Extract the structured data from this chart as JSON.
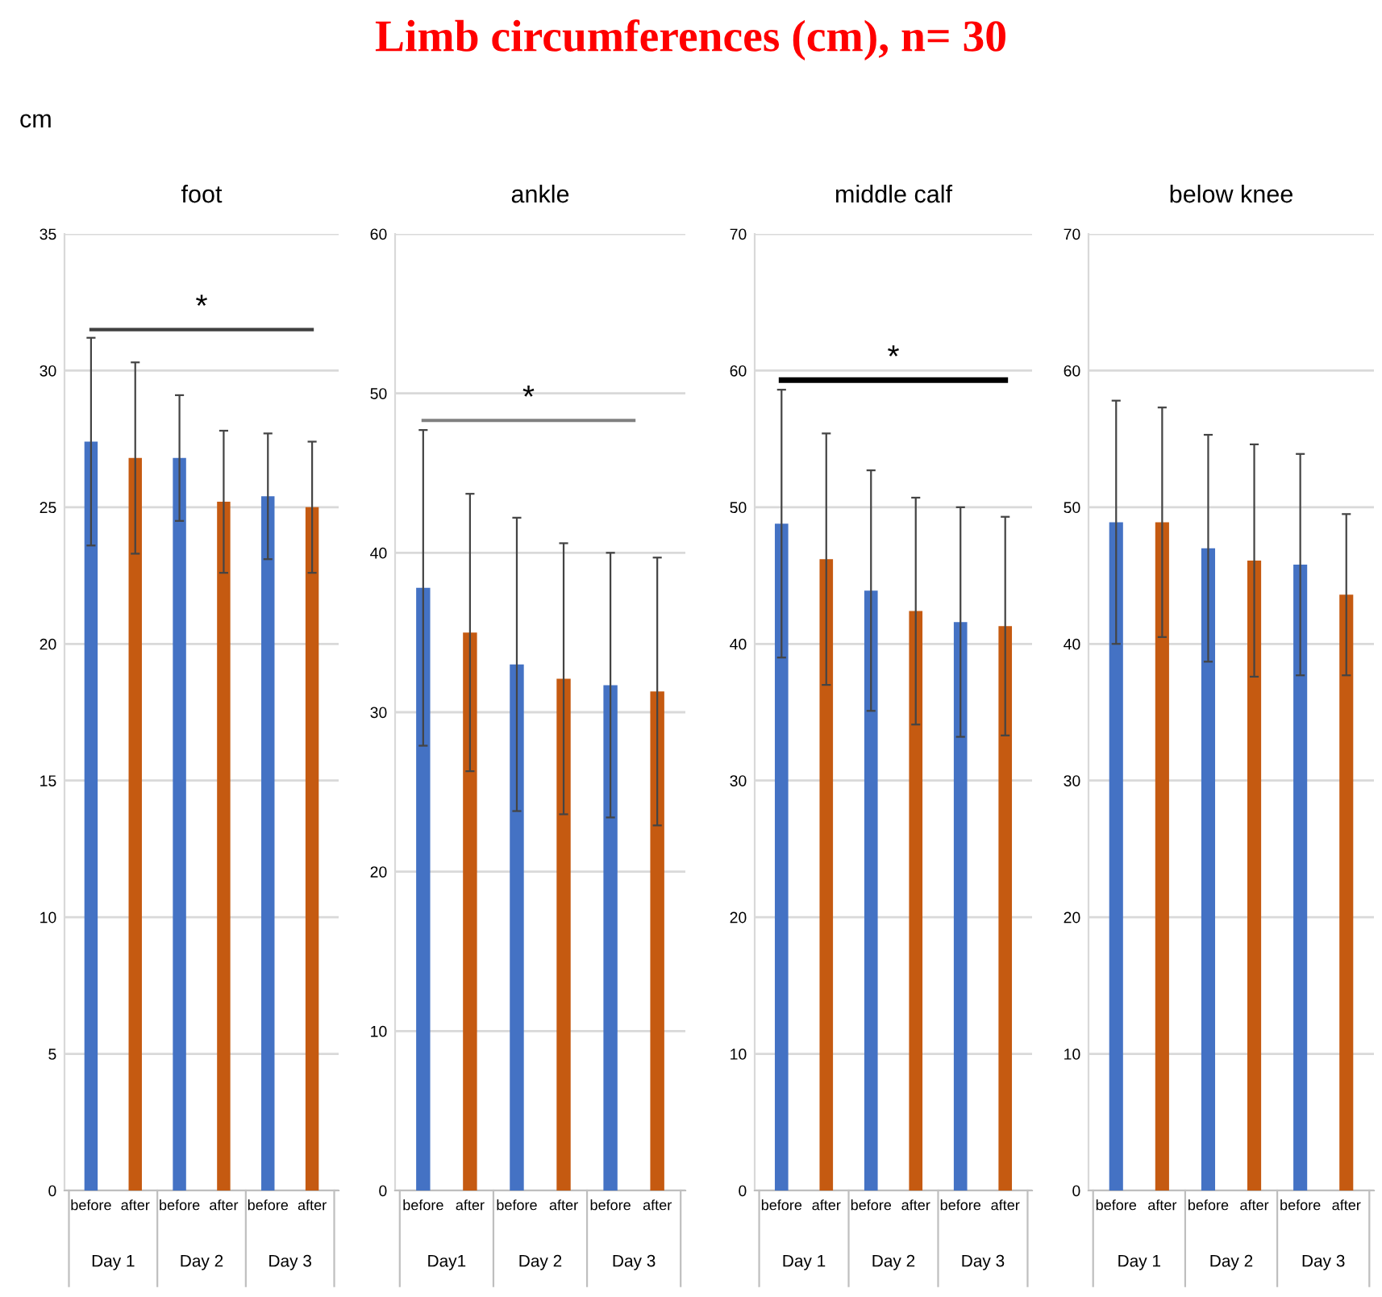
{
  "chart_data": [
    {
      "type": "bar",
      "subtitle": "foot",
      "ylabel": "cm",
      "categories": [
        "before",
        "after",
        "before",
        "after",
        "before",
        "after"
      ],
      "values": [
        27.4,
        26.8,
        26.8,
        25.2,
        25.4,
        25.0
      ],
      "errors": [
        3.8,
        3.5,
        2.3,
        2.6,
        2.3,
        2.4
      ],
      "colors": [
        "#4472c4",
        "#c55a11",
        "#4472c4",
        "#c55a11",
        "#4472c4",
        "#c55a11"
      ],
      "ylim": [
        0,
        35
      ],
      "yticks": [
        0,
        5,
        10,
        15,
        20,
        25,
        30,
        35
      ],
      "grid": "y",
      "ref_lines": [
        {
          "axis": "y",
          "value": 31.5,
          "label": "*",
          "color": "#404040"
        }
      ],
      "annotations": [
        "Limb circumferences (cm), n= 30",
        "Day 1",
        "Day 2",
        "Day 3"
      ]
    },
    {
      "type": "bar",
      "subtitle": "ankle",
      "categories": [
        "before",
        "after",
        "before",
        "after",
        "before",
        "after"
      ],
      "values": [
        37.8,
        35.0,
        33.0,
        32.1,
        31.7,
        31.3
      ],
      "errors": [
        9.9,
        8.7,
        9.2,
        8.5,
        8.3,
        8.4
      ],
      "colors": [
        "#4472c4",
        "#c55a11",
        "#4472c4",
        "#c55a11",
        "#4472c4",
        "#c55a11"
      ],
      "ylim": [
        0,
        60
      ],
      "yticks": [
        0,
        10,
        20,
        30,
        40,
        50,
        60
      ],
      "grid": "y",
      "ref_lines": [
        {
          "axis": "y",
          "value": 48.3,
          "label": "*",
          "color": "#808080"
        }
      ],
      "annotations": [
        "Day1",
        "Day 2",
        "Day 3"
      ]
    },
    {
      "type": "bar",
      "subtitle": "middle calf",
      "categories": [
        "before",
        "after",
        "before",
        "after",
        "before",
        "after"
      ],
      "values": [
        48.8,
        46.2,
        43.9,
        42.4,
        41.6,
        41.3
      ],
      "errors": [
        9.8,
        9.2,
        8.8,
        8.3,
        8.4,
        8.0
      ],
      "colors": [
        "#4472c4",
        "#c55a11",
        "#4472c4",
        "#c55a11",
        "#4472c4",
        "#c55a11"
      ],
      "ylim": [
        0,
        70
      ],
      "yticks": [
        0,
        10,
        20,
        30,
        40,
        50,
        60,
        70
      ],
      "grid": "y",
      "ref_lines": [
        {
          "axis": "y",
          "value": 59.3,
          "label": "*",
          "color": "#000000"
        }
      ],
      "annotations": [
        "Day 1",
        "Day 2",
        "Day 3"
      ]
    },
    {
      "type": "bar",
      "subtitle": "below knee",
      "categories": [
        "before",
        "after",
        "before",
        "after",
        "before",
        "after"
      ],
      "values": [
        48.9,
        48.9,
        47.0,
        46.1,
        45.8,
        43.6
      ],
      "errors": [
        8.9,
        8.4,
        8.3,
        8.5,
        8.1,
        5.9
      ],
      "colors": [
        "#4472c4",
        "#c55a11",
        "#4472c4",
        "#c55a11",
        "#4472c4",
        "#c55a11"
      ],
      "ylim": [
        0,
        70
      ],
      "yticks": [
        0,
        10,
        20,
        30,
        40,
        50,
        60,
        70
      ],
      "grid": "y",
      "annotations": [
        "Day 1",
        "Day 2",
        "Day 3"
      ]
    }
  ]
}
